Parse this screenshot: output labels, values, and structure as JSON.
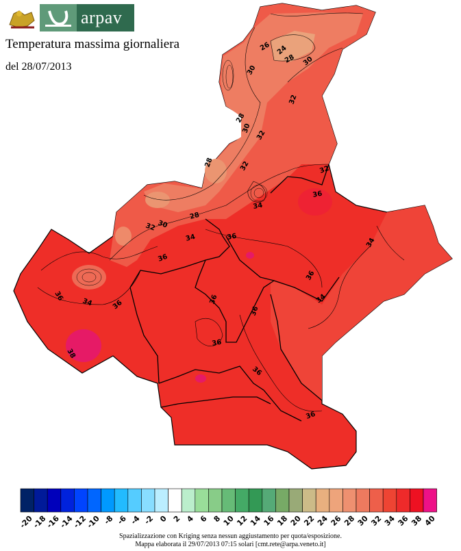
{
  "header": {
    "brand": "arpav",
    "title": "Temperatura massima giornaliera",
    "date_text": "del 28/07/2013"
  },
  "map": {
    "contour_labels": [
      "24",
      "26",
      "28",
      "30",
      "30",
      "30",
      "32",
      "32",
      "32",
      "32",
      "28",
      "28",
      "28",
      "30",
      "32",
      "34",
      "34",
      "36",
      "36",
      "36",
      "36",
      "36",
      "34",
      "34",
      "36",
      "36",
      "34",
      "36",
      "36",
      "36",
      "36",
      "38"
    ]
  },
  "legend": {
    "classes": [
      {
        "label": "-20",
        "color": "#002266"
      },
      {
        "label": "-18",
        "color": "#001a99"
      },
      {
        "label": "-16",
        "color": "#0000bb"
      },
      {
        "label": "-14",
        "color": "#0022dd"
      },
      {
        "label": "-12",
        "color": "#0044ff"
      },
      {
        "label": "-10",
        "color": "#0066ff"
      },
      {
        "label": "-8",
        "color": "#0099ff"
      },
      {
        "label": "-6",
        "color": "#22bbff"
      },
      {
        "label": "-4",
        "color": "#55ccff"
      },
      {
        "label": "-2",
        "color": "#88ddff"
      },
      {
        "label": "0",
        "color": "#bbeeff"
      },
      {
        "label": "2",
        "color": "#ffffff"
      },
      {
        "label": "4",
        "color": "#bbeecc"
      },
      {
        "label": "6",
        "color": "#99dd99"
      },
      {
        "label": "8",
        "color": "#88cc88"
      },
      {
        "label": "10",
        "color": "#66bb77"
      },
      {
        "label": "12",
        "color": "#44aa66"
      },
      {
        "label": "14",
        "color": "#339955"
      },
      {
        "label": "16",
        "color": "#55aa77"
      },
      {
        "label": "18",
        "color": "#77aa66"
      },
      {
        "label": "20",
        "color": "#99aa77"
      },
      {
        "label": "22",
        "color": "#ccbb88"
      },
      {
        "label": "24",
        "color": "#e8b07f"
      },
      {
        "label": "26",
        "color": "#eea47b"
      },
      {
        "label": "28",
        "color": "#ee9070"
      },
      {
        "label": "30",
        "color": "#ee7a5f"
      },
      {
        "label": "32",
        "color": "#ee5f4a"
      },
      {
        "label": "34",
        "color": "#ee4433"
      },
      {
        "label": "36",
        "color": "#ee2a2a"
      },
      {
        "label": "38",
        "color": "#ee1122"
      },
      {
        "label": "40",
        "color": "#ee1188"
      }
    ]
  },
  "footer": {
    "line1": "Spazializzazione con Kriging senza nessun aggiustamento per quota/esposizione.",
    "line2": "Mappa elaborata il 29/07/2013 07:15 solari [cmt.rete@arpa.veneto.it]"
  }
}
